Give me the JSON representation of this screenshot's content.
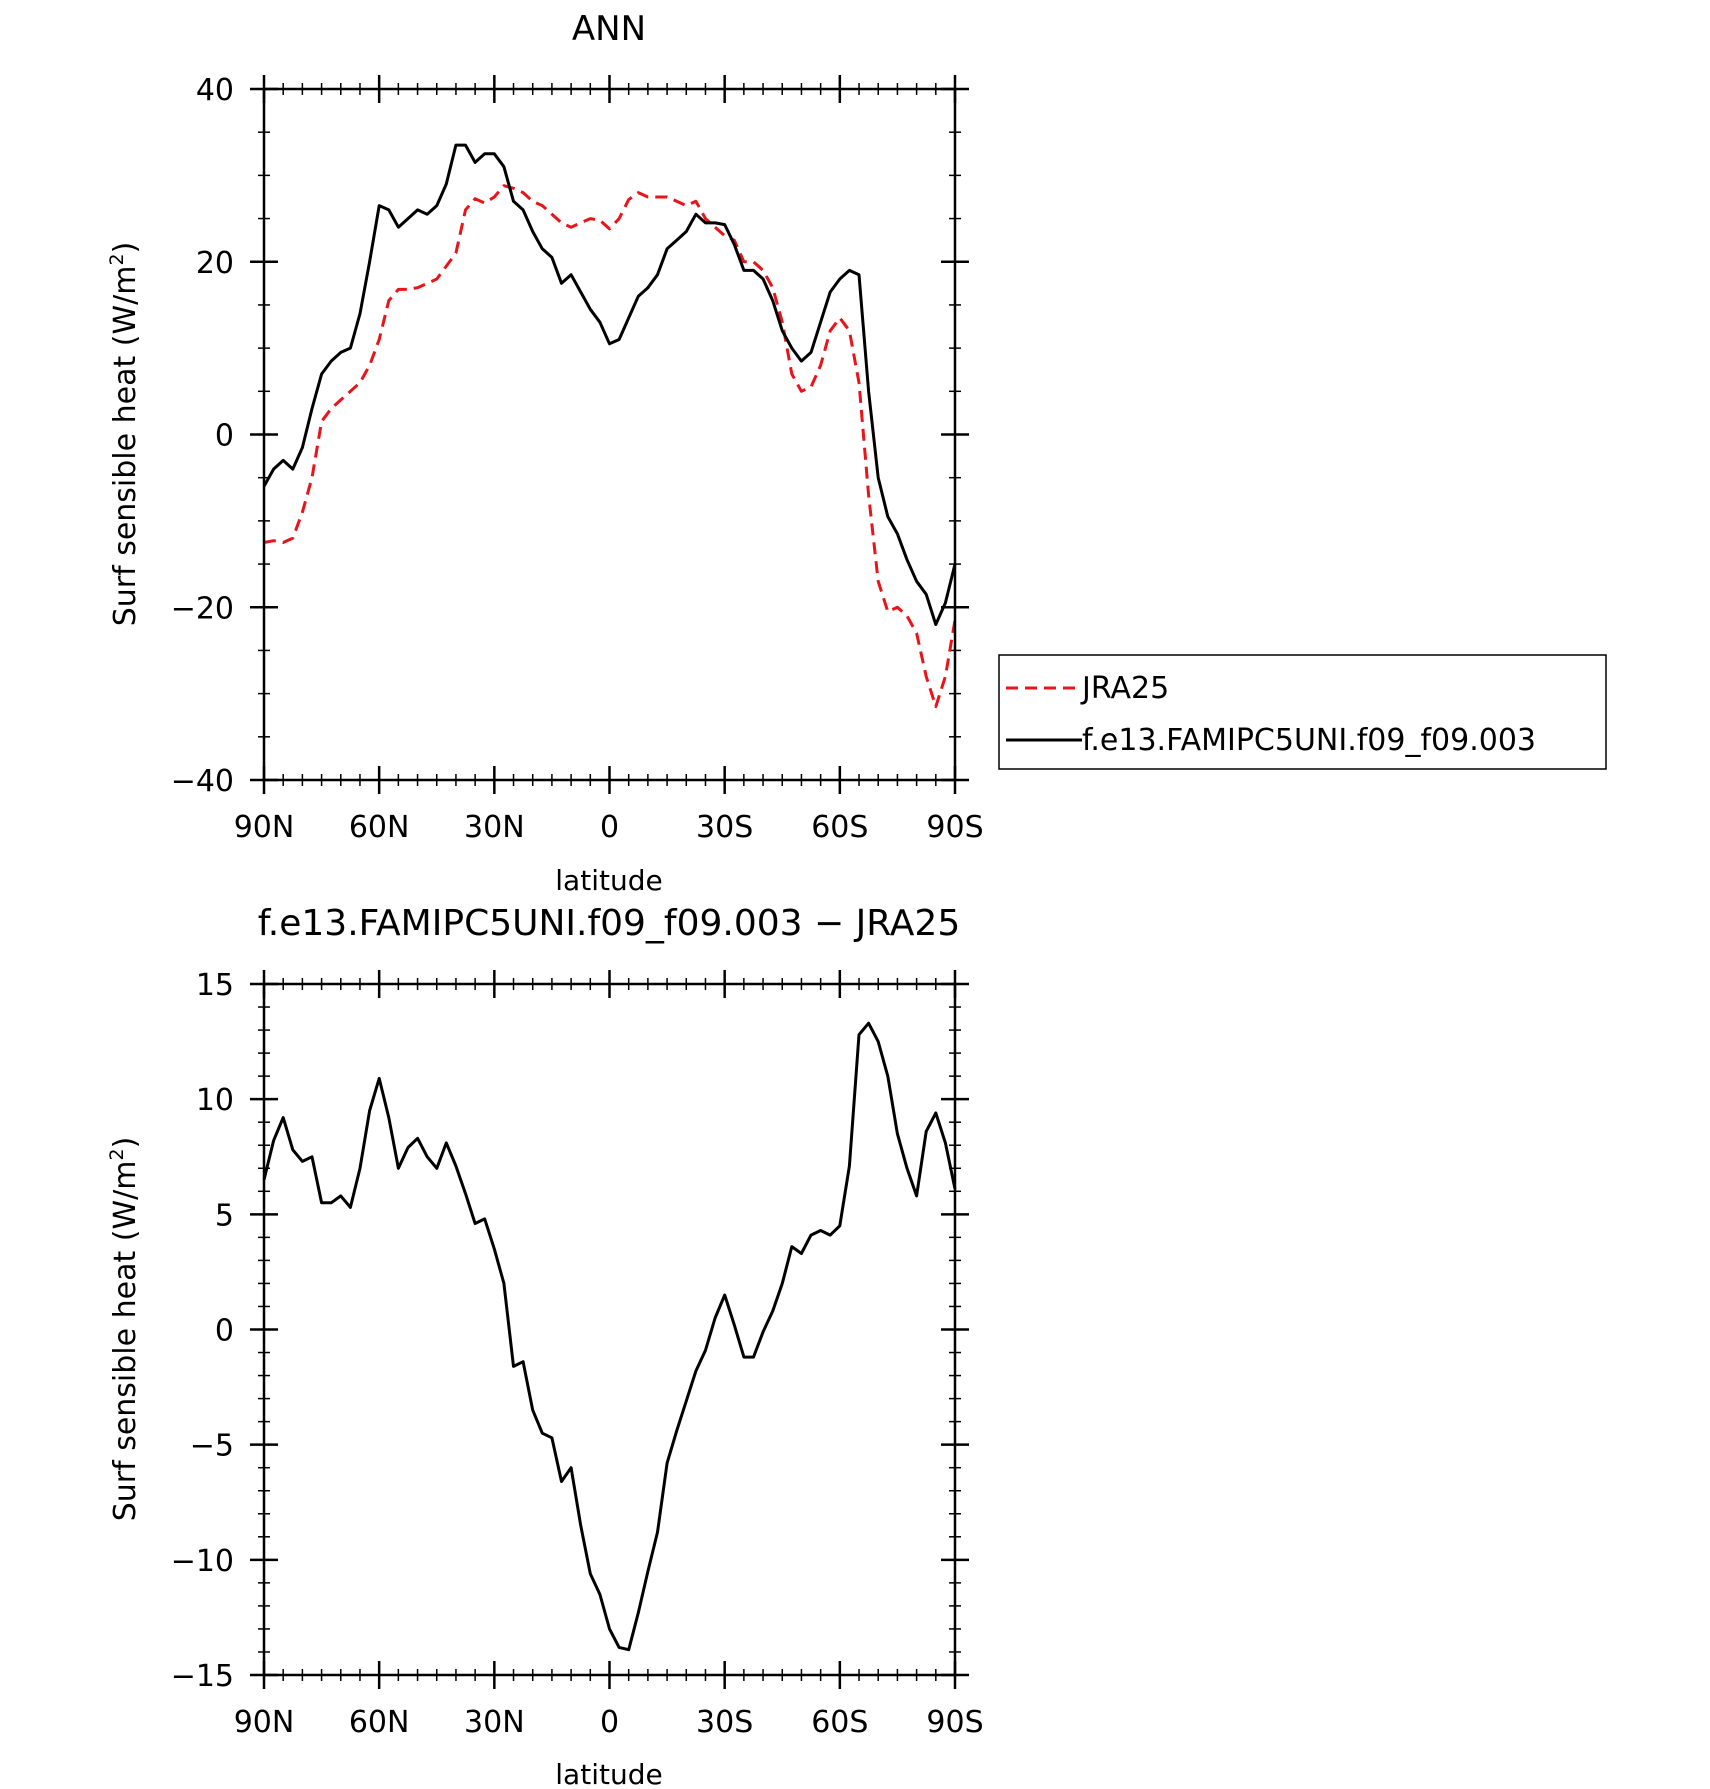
{
  "chart_data": [
    {
      "type": "line",
      "title": "ANN",
      "xlabel": "latitude",
      "ylabel": "Surf sensible heat (W/m",
      "ylabel_sup": "2",
      "ylabel_close": ")",
      "xlim": [
        90,
        -90
      ],
      "ylim": [
        -40,
        40
      ],
      "xticks": [
        {
          "value": 90,
          "label": "90N"
        },
        {
          "value": 60,
          "label": "60N"
        },
        {
          "value": 30,
          "label": "30N"
        },
        {
          "value": 0,
          "label": "0"
        },
        {
          "value": -30,
          "label": "30S"
        },
        {
          "value": -60,
          "label": "60S"
        },
        {
          "value": -90,
          "label": "90S"
        }
      ],
      "yticks": [
        {
          "value": 40,
          "label": "40"
        },
        {
          "value": 20,
          "label": "20"
        },
        {
          "value": 0,
          "label": "0"
        },
        {
          "value": -20,
          "label": "−20"
        },
        {
          "value": -40,
          "label": "−40"
        }
      ],
      "legend": {
        "placement": "right"
      },
      "series": [
        {
          "name": "JRA25",
          "color": "#e8141a",
          "dash": "dashed",
          "x": [
            90,
            87.5,
            85,
            82.5,
            80,
            77.5,
            75,
            72.5,
            70,
            67.5,
            65,
            62.5,
            60,
            57.5,
            55,
            52.5,
            50,
            47.5,
            45,
            42.5,
            40,
            37.5,
            35,
            32.5,
            30,
            27.5,
            25,
            22.5,
            20,
            17.5,
            15,
            12.5,
            10,
            7.5,
            5,
            2.5,
            0,
            -2.5,
            -5,
            -7.5,
            -10,
            -12.5,
            -15,
            -17.5,
            -20,
            -22.5,
            -25,
            -27.5,
            -30,
            -32.5,
            -35,
            -37.5,
            -40,
            -42.5,
            -45,
            -47.5,
            -50,
            -52.5,
            -55,
            -57.5,
            -60,
            -62.5,
            -65,
            -67.5,
            -70,
            -72.5,
            -75,
            -77.5,
            -80,
            -82.5,
            -85,
            -87.5,
            -90
          ],
          "y": [
            -12.5,
            -12.3,
            -12.5,
            -12,
            -9,
            -5,
            1.5,
            3,
            4,
            5,
            6,
            8,
            11,
            15.5,
            16.8,
            16.8,
            17,
            17.5,
            18,
            19.5,
            21,
            26,
            27.3,
            26.8,
            27.5,
            28.8,
            28.5,
            28,
            27,
            26.5,
            25.5,
            24.5,
            24,
            24.5,
            25,
            24.8,
            23.8,
            25,
            27.2,
            28,
            27.5,
            27.5,
            27.5,
            27,
            26.5,
            27,
            25,
            24,
            23,
            22.5,
            20,
            20,
            19,
            17,
            13,
            7,
            5,
            5.5,
            8,
            12,
            13.5,
            12,
            6,
            -7,
            -17,
            -20.5,
            -20,
            -21,
            -23,
            -28,
            -31.5,
            -28,
            -21.5
          ]
        },
        {
          "name": "f.e13.FAMIPC5UNI.f09_f09.003",
          "color": "#000000",
          "dash": "solid",
          "x": [
            90,
            87.5,
            85,
            82.5,
            80,
            77.5,
            75,
            72.5,
            70,
            67.5,
            65,
            62.5,
            60,
            57.5,
            55,
            52.5,
            50,
            47.5,
            45,
            42.5,
            40,
            37.5,
            35,
            32.5,
            30,
            27.5,
            25,
            22.5,
            20,
            17.5,
            15,
            12.5,
            10,
            7.5,
            5,
            2.5,
            0,
            -2.5,
            -5,
            -7.5,
            -10,
            -12.5,
            -15,
            -17.5,
            -20,
            -22.5,
            -25,
            -27.5,
            -30,
            -32.5,
            -35,
            -37.5,
            -40,
            -42.5,
            -45,
            -47.5,
            -50,
            -52.5,
            -55,
            -57.5,
            -60,
            -62.5,
            -65,
            -67.5,
            -70,
            -72.5,
            -75,
            -77.5,
            -80,
            -82.5,
            -85,
            -87.5,
            -90
          ],
          "y": [
            -6,
            -4,
            -3,
            -4,
            -1.5,
            3,
            7,
            8.5,
            9.5,
            10,
            14,
            20,
            26.5,
            26,
            24,
            25,
            26,
            25.5,
            26.5,
            29,
            33.5,
            33.5,
            31.5,
            32.5,
            32.5,
            31,
            27,
            26,
            23.5,
            21.5,
            20.5,
            17.5,
            18.5,
            16.5,
            14.5,
            13,
            10.5,
            11,
            13.5,
            16,
            17,
            18.5,
            21.5,
            22.5,
            23.5,
            25.5,
            24.5,
            24.5,
            24.3,
            22,
            19,
            19,
            18,
            15.5,
            12,
            10,
            8.5,
            9.5,
            13,
            16.5,
            18,
            19,
            18.5,
            5,
            -5,
            -9.5,
            -11.5,
            -14.5,
            -17,
            -18.5,
            -22,
            -19.5,
            -15
          ]
        }
      ]
    },
    {
      "type": "line",
      "title": "f.e13.FAMIPC5UNI.f09_f09.003 − JRA25",
      "xlabel": "latitude",
      "ylabel": "Surf sensible heat (W/m",
      "ylabel_sup": "2",
      "ylabel_close": ")",
      "xlim": [
        90,
        -90
      ],
      "ylim": [
        -15,
        15
      ],
      "xticks": [
        {
          "value": 90,
          "label": "90N"
        },
        {
          "value": 60,
          "label": "60N"
        },
        {
          "value": 30,
          "label": "30N"
        },
        {
          "value": 0,
          "label": "0"
        },
        {
          "value": -30,
          "label": "30S"
        },
        {
          "value": -60,
          "label": "60S"
        },
        {
          "value": -90,
          "label": "90S"
        }
      ],
      "yticks": [
        {
          "value": 15,
          "label": "15"
        },
        {
          "value": 10,
          "label": "10"
        },
        {
          "value": 5,
          "label": "5"
        },
        {
          "value": 0,
          "label": "0"
        },
        {
          "value": -5,
          "label": "−5"
        },
        {
          "value": -10,
          "label": "−10"
        },
        {
          "value": -15,
          "label": "−15"
        }
      ],
      "series": [
        {
          "color": "#000000",
          "dash": "solid",
          "x": [
            90,
            87.5,
            85,
            82.5,
            80,
            77.5,
            75,
            72.5,
            70,
            67.5,
            65,
            62.5,
            60,
            57.5,
            55,
            52.5,
            50,
            47.5,
            45,
            42.5,
            40,
            37.5,
            35,
            32.5,
            30,
            27.5,
            25,
            22.5,
            20,
            17.5,
            15,
            12.5,
            10,
            7.5,
            5,
            2.5,
            0,
            -2.5,
            -5,
            -7.5,
            -10,
            -12.5,
            -15,
            -17.5,
            -20,
            -22.5,
            -25,
            -27.5,
            -30,
            -32.5,
            -35,
            -37.5,
            -40,
            -42.5,
            -45,
            -47.5,
            -50,
            -52.5,
            -55,
            -57.5,
            -60,
            -62.5,
            -65,
            -67.5,
            -70,
            -72.5,
            -75,
            -77.5,
            -80,
            -82.5,
            -85,
            -87.5,
            -90
          ],
          "y": [
            6.5,
            8.2,
            9.2,
            7.8,
            7.3,
            7.5,
            5.5,
            5.5,
            5.8,
            5.3,
            7,
            9.5,
            10.9,
            9.2,
            7,
            7.9,
            8.3,
            7.5,
            7,
            8.1,
            7.1,
            5.9,
            4.6,
            4.8,
            3.5,
            2,
            -1.6,
            -1.4,
            -3.5,
            -4.5,
            -4.7,
            -6.6,
            -6,
            -8.5,
            -10.6,
            -11.5,
            -13,
            -13.8,
            -13.9,
            -12.3,
            -10.5,
            -8.8,
            -5.8,
            -4.4,
            -3.1,
            -1.8,
            -0.9,
            0.5,
            1.5,
            0.2,
            -1.2,
            -1.2,
            -0.1,
            0.8,
            2,
            3.6,
            3.3,
            4.1,
            4.3,
            4.1,
            4.5,
            7.1,
            12.8,
            13.3,
            12.5,
            11,
            8.5,
            7,
            5.8,
            8.6,
            9.4,
            8.1,
            6.1
          ]
        }
      ]
    }
  ]
}
